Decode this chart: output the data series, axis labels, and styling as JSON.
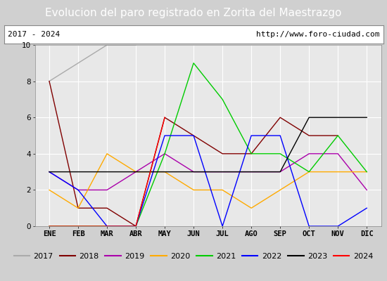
{
  "title": "Evolucion del paro registrado en Zorita del Maestrazgo",
  "subtitle_left": "2017 - 2024",
  "subtitle_right": "http://www.foro-ciudad.com",
  "months": [
    "ENE",
    "FEB",
    "MAR",
    "ABR",
    "MAY",
    "JUN",
    "JUL",
    "AGO",
    "SEP",
    "OCT",
    "NOV",
    "DIC"
  ],
  "ylim": [
    0,
    10
  ],
  "yticks": [
    0,
    2,
    4,
    6,
    8,
    10
  ],
  "series": {
    "2017": {
      "values": [
        8,
        9,
        10,
        10,
        null,
        null,
        null,
        null,
        null,
        null,
        null,
        null
      ],
      "color": "#aaaaaa"
    },
    "2018": {
      "values": [
        8,
        1,
        1,
        0,
        6,
        5,
        4,
        4,
        6,
        5,
        5,
        null
      ],
      "color": "#800000"
    },
    "2019": {
      "values": [
        3,
        2,
        2,
        3,
        4,
        3,
        3,
        3,
        3,
        4,
        4,
        2
      ],
      "color": "#aa00aa"
    },
    "2020": {
      "values": [
        2,
        1,
        4,
        3,
        3,
        2,
        2,
        1,
        2,
        3,
        3,
        3
      ],
      "color": "#ffaa00"
    },
    "2021": {
      "values": [
        0,
        0,
        0,
        0,
        4,
        9,
        7,
        4,
        4,
        3,
        5,
        3
      ],
      "color": "#00cc00"
    },
    "2022": {
      "values": [
        3,
        2,
        0,
        0,
        5,
        5,
        0,
        5,
        5,
        0,
        0,
        1
      ],
      "color": "#0000ff"
    },
    "2023": {
      "values": [
        3,
        3,
        3,
        3,
        3,
        3,
        3,
        3,
        3,
        6,
        6,
        6
      ],
      "color": "#000000"
    },
    "2024": {
      "values": [
        0,
        null,
        null,
        0,
        6,
        null,
        null,
        null,
        null,
        null,
        null,
        null
      ],
      "color": "#ff0000"
    }
  },
  "background_color": "#d0d0d0",
  "plot_background": "#e8e8e8",
  "title_bg": "#5588cc",
  "title_color": "white",
  "title_fontsize": 11,
  "legend_fontsize": 8,
  "tick_fontsize": 7.5,
  "subtitle_fontsize": 8
}
